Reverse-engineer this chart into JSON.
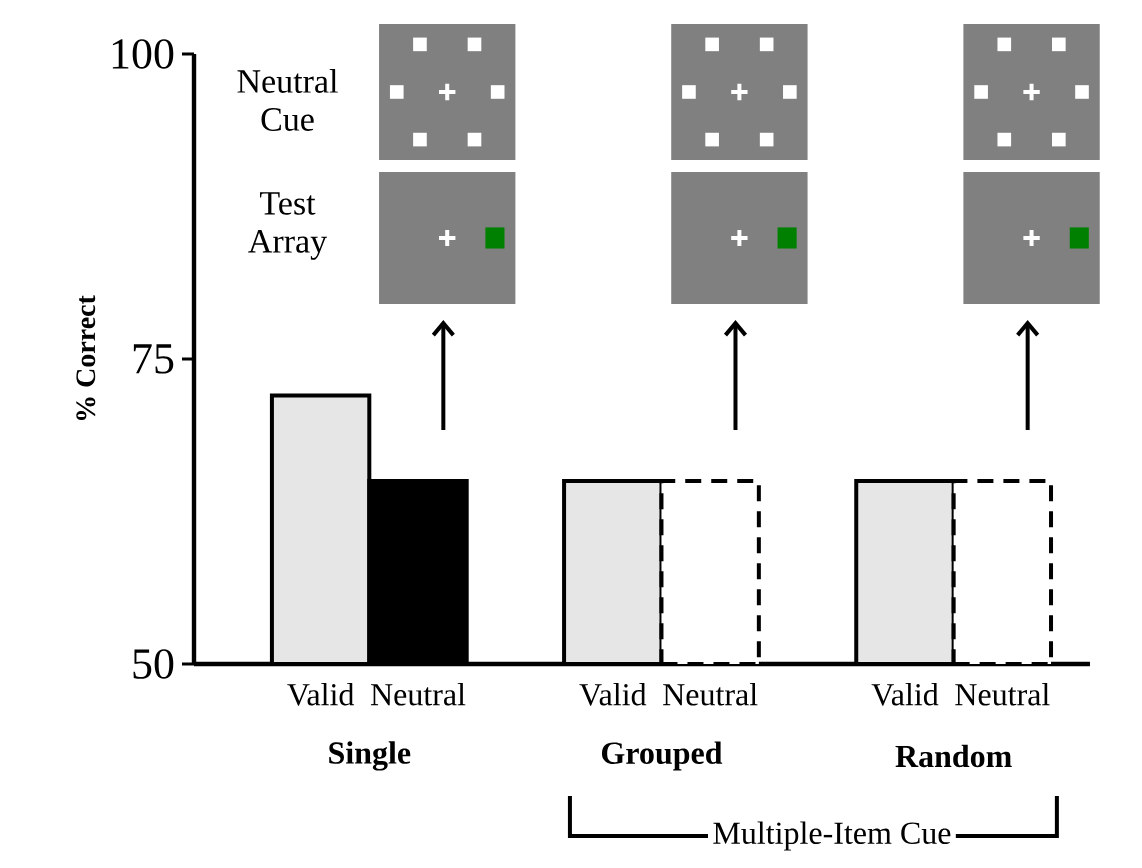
{
  "chart_data": {
    "type": "bar",
    "ylabel": "% Correct",
    "categories": [
      "Valid",
      "Neutral",
      "Valid",
      "Neutral",
      "Valid",
      "Neutral"
    ],
    "series": [
      {
        "color": "#e6e6e6",
        "values": [
          72,
          null,
          65,
          null,
          65,
          null
        ]
      },
      {
        "color": "#000000",
        "values": [
          null,
          65,
          null,
          null,
          null,
          null
        ]
      },
      {
        "color": "#ffffff",
        "line_style": "dashed",
        "values": [
          null,
          null,
          null,
          65,
          null,
          65
        ]
      }
    ],
    "ylim": [
      50,
      100
    ],
    "yticks": [
      50,
      75,
      100
    ],
    "annotations": [
      "Neutral Cue",
      "Test Array",
      "Single",
      "Grouped",
      "Random",
      "Multiple-Item Cue"
    ]
  }
}
